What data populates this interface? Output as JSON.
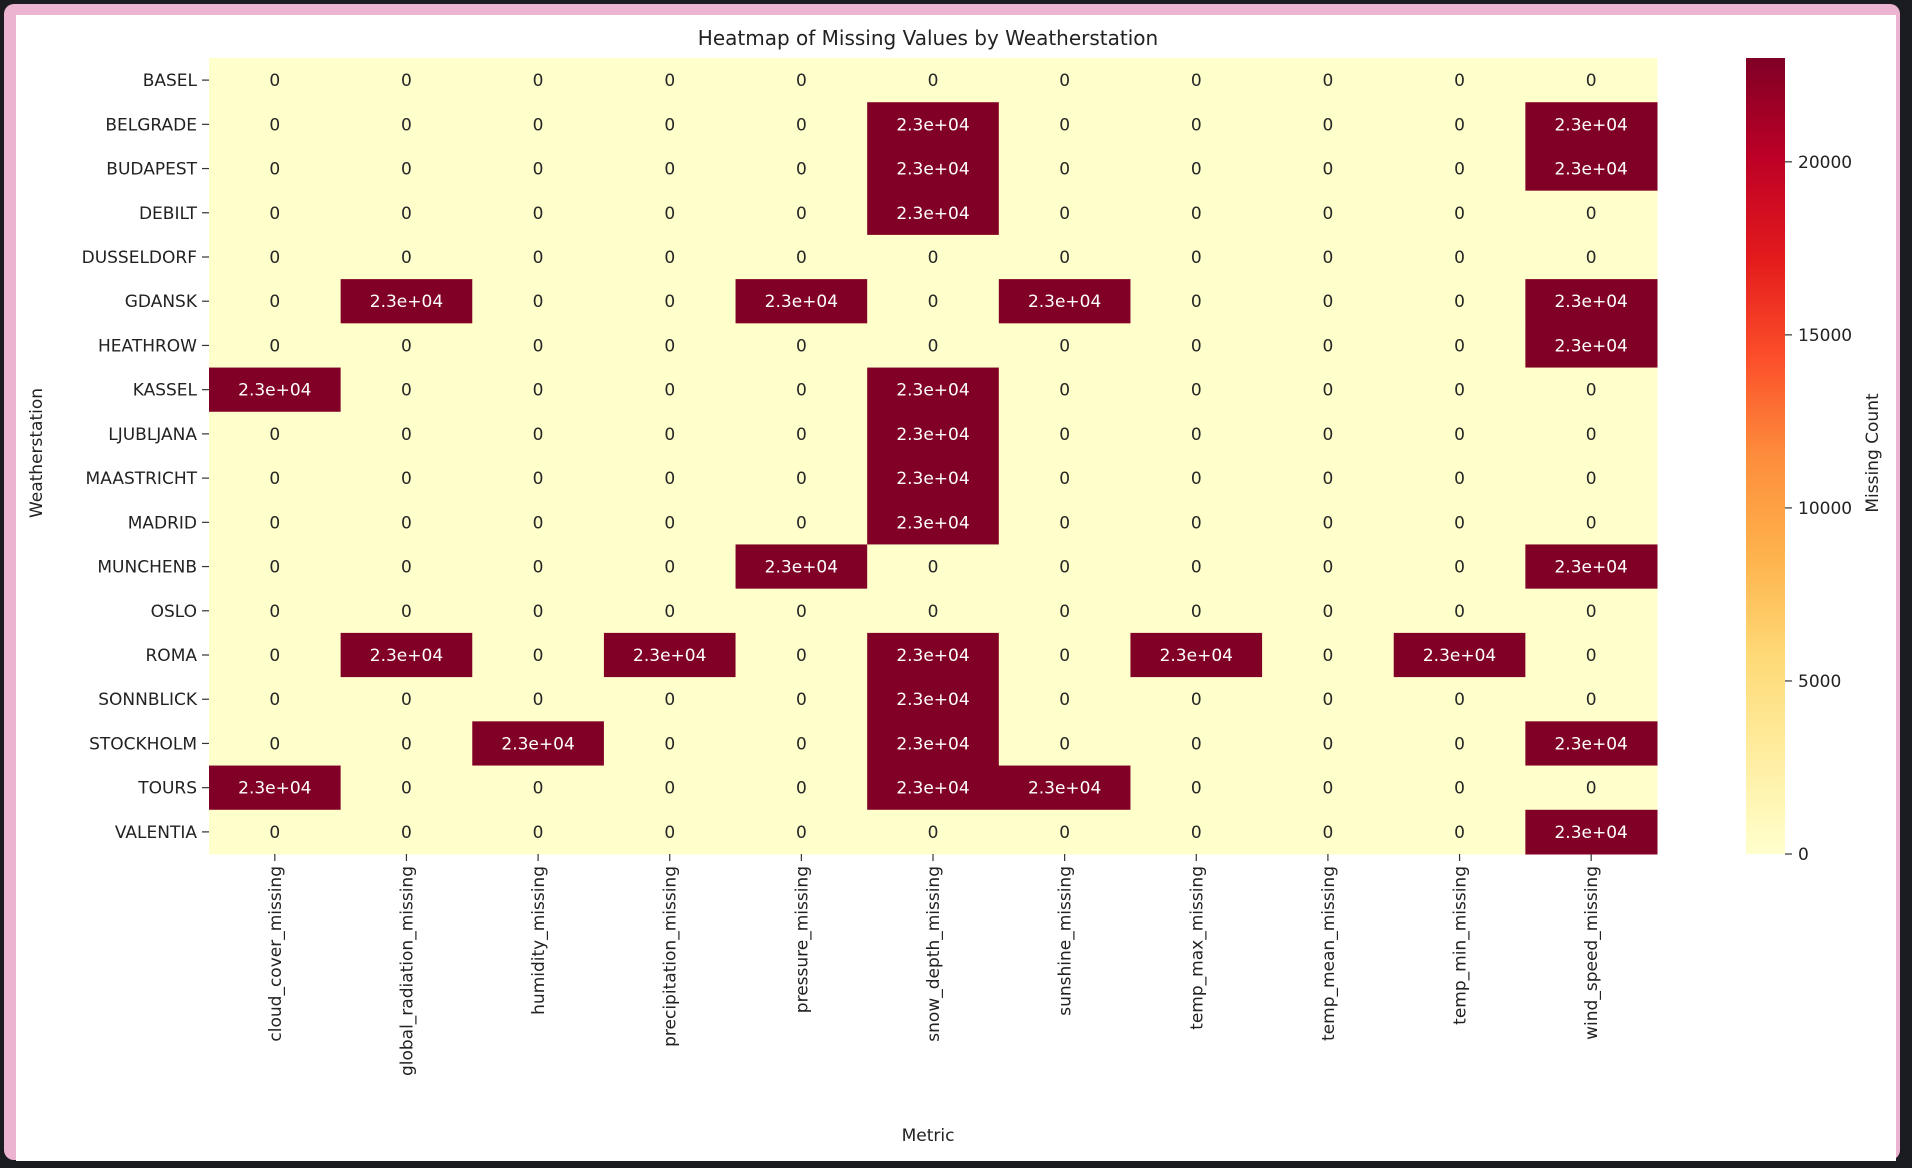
{
  "chart_data": {
    "type": "heatmap",
    "title": "Heatmap of Missing Values by Weatherstation",
    "xlabel": "Metric",
    "ylabel": "Weatherstation",
    "colorbar_label": "Missing Count",
    "colormap": "YlOrRd",
    "colormap_stops": [
      "#ffffcc",
      "#ffeda0",
      "#fed976",
      "#feb24c",
      "#fd8d3c",
      "#fc4e2a",
      "#e31a1c",
      "#bd0026",
      "#800026"
    ],
    "vmin": 0,
    "vmax": 23000,
    "colorbar_ticks": [
      0,
      5000,
      10000,
      15000,
      20000
    ],
    "columns": [
      "cloud_cover_missing",
      "global_radiation_missing",
      "humidity_missing",
      "precipitation_missing",
      "pressure_missing",
      "snow_depth_missing",
      "sunshine_missing",
      "temp_max_missing",
      "temp_mean_missing",
      "temp_min_missing",
      "wind_speed_missing"
    ],
    "rows": [
      "BASEL",
      "BELGRADE",
      "BUDAPEST",
      "DEBILT",
      "DUSSELDORF",
      "GDANSK",
      "HEATHROW",
      "KASSEL",
      "LJUBLJANA",
      "MAASTRICHT",
      "MADRID",
      "MUNCHENB",
      "OSLO",
      "ROMA",
      "SONNBLICK",
      "STOCKHOLM",
      "TOURS",
      "VALENTIA"
    ],
    "values": [
      [
        0,
        0,
        0,
        0,
        0,
        0,
        0,
        0,
        0,
        0,
        0
      ],
      [
        0,
        0,
        0,
        0,
        0,
        23000,
        0,
        0,
        0,
        0,
        23000
      ],
      [
        0,
        0,
        0,
        0,
        0,
        23000,
        0,
        0,
        0,
        0,
        23000
      ],
      [
        0,
        0,
        0,
        0,
        0,
        23000,
        0,
        0,
        0,
        0,
        0
      ],
      [
        0,
        0,
        0,
        0,
        0,
        0,
        0,
        0,
        0,
        0,
        0
      ],
      [
        0,
        23000,
        0,
        0,
        23000,
        0,
        23000,
        0,
        0,
        0,
        23000
      ],
      [
        0,
        0,
        0,
        0,
        0,
        0,
        0,
        0,
        0,
        0,
        23000
      ],
      [
        23000,
        0,
        0,
        0,
        0,
        23000,
        0,
        0,
        0,
        0,
        0
      ],
      [
        0,
        0,
        0,
        0,
        0,
        23000,
        0,
        0,
        0,
        0,
        0
      ],
      [
        0,
        0,
        0,
        0,
        0,
        23000,
        0,
        0,
        0,
        0,
        0
      ],
      [
        0,
        0,
        0,
        0,
        0,
        23000,
        0,
        0,
        0,
        0,
        0
      ],
      [
        0,
        0,
        0,
        0,
        23000,
        0,
        0,
        0,
        0,
        0,
        23000
      ],
      [
        0,
        0,
        0,
        0,
        0,
        0,
        0,
        0,
        0,
        0,
        0
      ],
      [
        0,
        23000,
        0,
        23000,
        0,
        23000,
        0,
        23000,
        0,
        23000,
        0
      ],
      [
        0,
        0,
        0,
        0,
        0,
        23000,
        0,
        0,
        0,
        0,
        0
      ],
      [
        0,
        0,
        23000,
        0,
        0,
        23000,
        0,
        0,
        0,
        0,
        23000
      ],
      [
        23000,
        0,
        0,
        0,
        0,
        23000,
        23000,
        0,
        0,
        0,
        0
      ],
      [
        0,
        0,
        0,
        0,
        0,
        0,
        0,
        0,
        0,
        0,
        23000
      ]
    ],
    "annotation_format": "sci-2"
  }
}
